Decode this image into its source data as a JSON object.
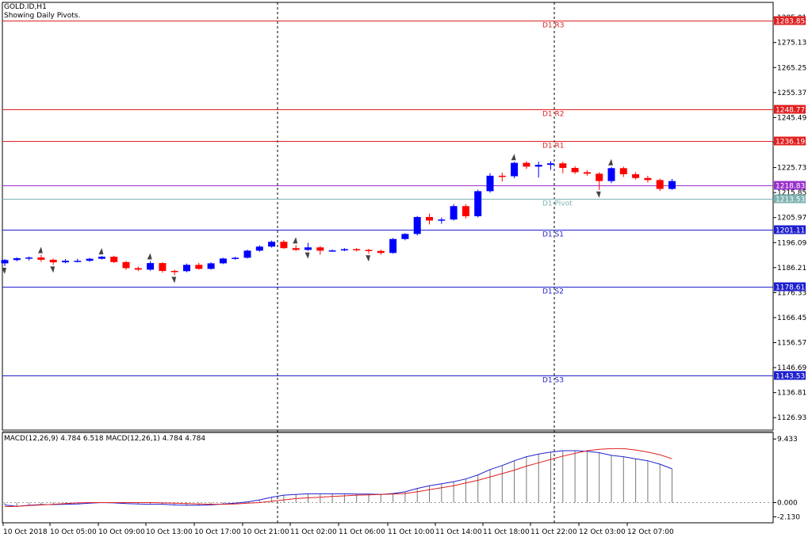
{
  "header": {
    "symbol_timeframe": "GOLD.ID,H1",
    "subtitle": "Showing Daily Pivots."
  },
  "price_axis": {
    "ticks": [
      "1285.01",
      "1275.13",
      "1265.25",
      "1255.37",
      "1245.49",
      "1235.61",
      "1225.73",
      "1215.85",
      "1205.97",
      "1196.09",
      "1186.21",
      "1176.33",
      "1166.45",
      "1156.57",
      "1146.69",
      "1136.81",
      "1126.93"
    ]
  },
  "pivots": [
    {
      "name": "D1 R3",
      "price": "1283.85",
      "color": "#e02020"
    },
    {
      "name": "D1 R2",
      "price": "1248.77",
      "color": "#e02020"
    },
    {
      "name": "D1 R1",
      "price": "1236.19",
      "color": "#e02020"
    },
    {
      "name": "",
      "price": "1218.83",
      "color": "#9932cc"
    },
    {
      "name": "D1 Pivot",
      "price": "1213.53",
      "color": "#7fb2b2"
    },
    {
      "name": "D1 S1",
      "price": "1201.11",
      "color": "#1f1fcf"
    },
    {
      "name": "D1 S2",
      "price": "1178.61",
      "color": "#1f1fcf"
    },
    {
      "name": "D1 S3",
      "price": "1143.53",
      "color": "#1f1fcf"
    }
  ],
  "macd": {
    "label": "MACD(12,26,9) 4.784 6.518 MACD(12,26,1) 4.784 4.784",
    "ticks": [
      "9.433",
      "0.000",
      "-2.130"
    ]
  },
  "time_axis": {
    "labels": [
      "10 Oct 2018",
      "10 Oct 05:00",
      "10 Oct 09:00",
      "10 Oct 13:00",
      "10 Oct 17:00",
      "10 Oct 21:00",
      "11 Oct 02:00",
      "11 Oct 06:00",
      "11 Oct 10:00",
      "11 Oct 14:00",
      "11 Oct 18:00",
      "11 Oct 22:00",
      "12 Oct 03:00",
      "12 Oct 07:00"
    ]
  },
  "colors": {
    "bull": "#0000ff",
    "bear": "#ff0000",
    "macd_main": "#2020d0",
    "macd_signal": "#e02020"
  },
  "chart_data": {
    "type": "candlestick",
    "ylim": [
      1122,
      1291
    ],
    "candles": [
      [
        1187.9,
        1189.6,
        1186.8,
        1189.2
      ],
      [
        1189.2,
        1190.3,
        1188.7,
        1189.9
      ],
      [
        1189.9,
        1190.6,
        1189.0,
        1190.2
      ],
      [
        1190.2,
        1191.3,
        1188.5,
        1189.3
      ],
      [
        1189.3,
        1189.8,
        1187.3,
        1188.3
      ],
      [
        1188.3,
        1189.6,
        1187.9,
        1188.9
      ],
      [
        1188.9,
        1189.7,
        1188.3,
        1188.9
      ],
      [
        1188.9,
        1190.1,
        1188.5,
        1189.7
      ],
      [
        1189.7,
        1190.8,
        1189.4,
        1190.5
      ],
      [
        1190.5,
        1190.9,
        1188.0,
        1188.4
      ],
      [
        1188.4,
        1188.8,
        1185.3,
        1186.0
      ],
      [
        1186.0,
        1186.6,
        1184.8,
        1185.4
      ],
      [
        1185.4,
        1188.8,
        1185.0,
        1188.0
      ],
      [
        1188.0,
        1188.3,
        1184.2,
        1184.9
      ],
      [
        1184.9,
        1185.4,
        1183.2,
        1184.8
      ],
      [
        1184.8,
        1187.8,
        1184.4,
        1187.3
      ],
      [
        1187.3,
        1188.1,
        1185.4,
        1185.7
      ],
      [
        1185.7,
        1188.3,
        1185.4,
        1187.9
      ],
      [
        1187.9,
        1190.1,
        1187.6,
        1189.8
      ],
      [
        1189.8,
        1190.5,
        1189.3,
        1190.1
      ],
      [
        1190.1,
        1193.3,
        1189.8,
        1192.9
      ],
      [
        1192.9,
        1195.0,
        1192.5,
        1194.5
      ],
      [
        1194.5,
        1196.9,
        1194.1,
        1196.4
      ],
      [
        1196.4,
        1197.1,
        1193.6,
        1193.9
      ],
      [
        1193.9,
        1195.1,
        1192.8,
        1193.2
      ],
      [
        1193.2,
        1196.0,
        1192.8,
        1194.2
      ],
      [
        1194.2,
        1194.7,
        1191.3,
        1192.9
      ],
      [
        1192.9,
        1193.4,
        1192.5,
        1193.0
      ],
      [
        1193.0,
        1193.9,
        1192.7,
        1193.5
      ],
      [
        1193.5,
        1193.9,
        1192.6,
        1193.2
      ],
      [
        1193.2,
        1193.6,
        1191.7,
        1192.8
      ],
      [
        1192.8,
        1193.3,
        1191.3,
        1192.0
      ],
      [
        1192.0,
        1197.9,
        1191.7,
        1197.5
      ],
      [
        1197.5,
        1199.8,
        1197.0,
        1199.5
      ],
      [
        1199.5,
        1206.6,
        1198.9,
        1206.2
      ],
      [
        1206.2,
        1207.5,
        1203.3,
        1204.8
      ],
      [
        1204.8,
        1206.0,
        1203.5,
        1205.2
      ],
      [
        1205.2,
        1211.3,
        1204.8,
        1210.5
      ],
      [
        1210.5,
        1211.3,
        1205.6,
        1206.5
      ],
      [
        1206.5,
        1217.0,
        1206.0,
        1216.4
      ],
      [
        1216.4,
        1223.5,
        1215.8,
        1222.5
      ],
      [
        1222.5,
        1223.7,
        1220.2,
        1222.3
      ],
      [
        1222.3,
        1228.0,
        1221.5,
        1227.6
      ],
      [
        1227.6,
        1228.2,
        1225.2,
        1226.1
      ],
      [
        1226.1,
        1228.1,
        1221.8,
        1226.8
      ],
      [
        1226.8,
        1228.2,
        1224.8,
        1227.4
      ],
      [
        1227.4,
        1228.0,
        1223.5,
        1225.6
      ],
      [
        1225.6,
        1226.3,
        1223.2,
        1223.9
      ],
      [
        1223.9,
        1224.7,
        1222.5,
        1223.3
      ],
      [
        1223.3,
        1223.9,
        1216.9,
        1220.4
      ],
      [
        1220.4,
        1226.0,
        1219.6,
        1225.5
      ],
      [
        1225.5,
        1226.1,
        1222.0,
        1223.1
      ],
      [
        1223.1,
        1223.9,
        1221.0,
        1221.6
      ],
      [
        1221.6,
        1222.5,
        1219.8,
        1220.8
      ],
      [
        1220.8,
        1221.4,
        1216.5,
        1217.3
      ],
      [
        1217.3,
        1221.2,
        1216.9,
        1220.4
      ]
    ],
    "macd_histogram": [
      -0.35,
      -0.55,
      -0.4,
      -0.3,
      -0.3,
      -0.25,
      -0.2,
      -0.1,
      0.0,
      -0.05,
      -0.15,
      -0.2,
      -0.25,
      -0.25,
      -0.35,
      -0.4,
      -0.4,
      -0.35,
      -0.2,
      -0.1,
      0.1,
      0.4,
      0.8,
      1.1,
      1.2,
      1.3,
      1.3,
      1.3,
      1.3,
      1.25,
      1.25,
      1.2,
      1.35,
      1.6,
      2.1,
      2.5,
      2.8,
      3.1,
      3.5,
      4.1,
      4.9,
      5.5,
      6.2,
      6.8,
      7.2,
      7.5,
      7.7,
      7.7,
      7.6,
      7.4,
      7.0,
      6.8,
      6.5,
      6.2,
      5.7,
      5.0
    ],
    "macd_signal": [
      -0.6,
      -0.55,
      -0.45,
      -0.35,
      -0.25,
      -0.15,
      -0.05,
      0.0,
      0.0,
      0.0,
      0.0,
      0.0,
      0.0,
      -0.05,
      -0.1,
      -0.15,
      -0.2,
      -0.25,
      -0.25,
      -0.2,
      -0.1,
      0.0,
      0.2,
      0.4,
      0.6,
      0.7,
      0.8,
      0.9,
      1.0,
      1.1,
      1.15,
      1.2,
      1.25,
      1.35,
      1.6,
      1.9,
      2.2,
      2.5,
      2.9,
      3.3,
      3.8,
      4.3,
      4.8,
      5.4,
      5.9,
      6.4,
      6.9,
      7.3,
      7.7,
      7.9,
      8.0,
      8.0,
      7.8,
      7.5,
      7.1,
      6.5
    ]
  }
}
